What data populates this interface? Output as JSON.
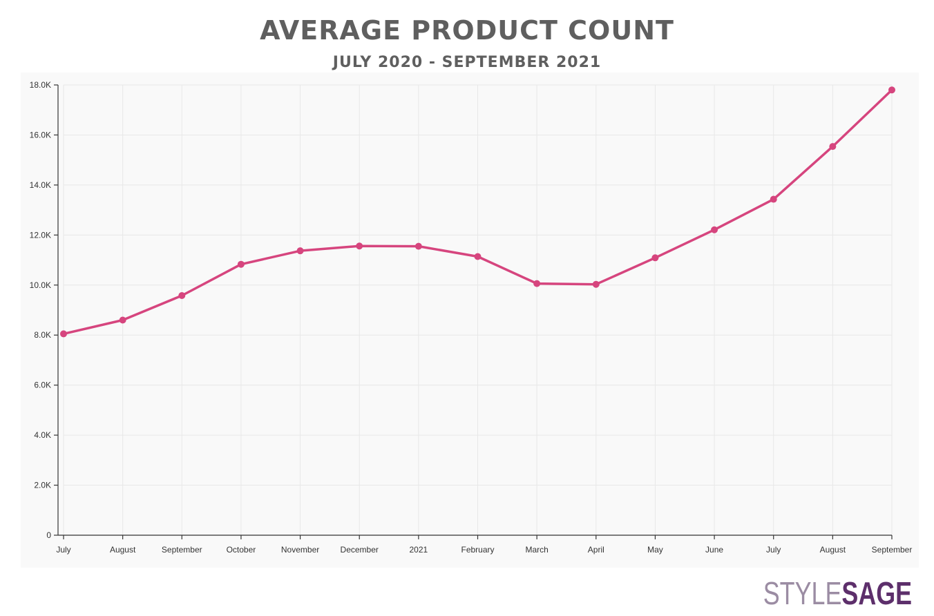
{
  "header": {
    "title": "AVERAGE PRODUCT COUNT",
    "subtitle": "JULY 2020 - SEPTEMBER 2021"
  },
  "logo": {
    "style": "STYLE",
    "sage": "SAGE"
  },
  "colors": {
    "line": "#d6457e",
    "axis": "#333333",
    "grid": "#e8e8e8",
    "panel": "#f9f9f9"
  },
  "chart_data": {
    "type": "line",
    "title": "AVERAGE PRODUCT COUNT",
    "subtitle": "JULY 2020 - SEPTEMBER 2021",
    "xlabel": "",
    "ylabel": "",
    "categories": [
      "July",
      "August",
      "September",
      "October",
      "November",
      "December",
      "2021",
      "February",
      "March",
      "April",
      "May",
      "June",
      "July",
      "August",
      "September"
    ],
    "series": [
      {
        "values": [
          8050,
          8600,
          9580,
          10830,
          11370,
          11560,
          11550,
          11140,
          10060,
          10030,
          11090,
          12210,
          13430,
          15540,
          17800
        ]
      }
    ],
    "ylim": [
      0,
      18000
    ],
    "yticks": [
      0,
      2000,
      4000,
      6000,
      8000,
      10000,
      12000,
      14000,
      16000,
      18000
    ],
    "ytick_labels": [
      "0",
      "2.0K",
      "4.0K",
      "6.0K",
      "8.0K",
      "10.0K",
      "12.0K",
      "14.0K",
      "16.0K",
      "18.0K"
    ],
    "grid": true,
    "legend": "none"
  }
}
